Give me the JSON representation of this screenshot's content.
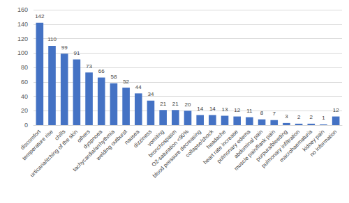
{
  "chart_data": {
    "type": "bar",
    "categories": [
      "discomfort",
      "temperature rise",
      "chills",
      "urticaria/itching of the skin",
      "others",
      "dyspnoea",
      "tachycardia/arrhythmia",
      "welding outburst",
      "nausea",
      "dizziness",
      "vomiting",
      "bronchospasm",
      "O2-saturation <90%",
      "blood pressure decreasing",
      "collapse/shock",
      "headache",
      "heart rate increase",
      "pulmonary edema",
      "abdominal pain",
      "muscle pain/flank pain",
      "purpura/bleeding",
      "pulmonary infiltration",
      "macrohaematuria",
      "kidney pain",
      "no information"
    ],
    "values": [
      142,
      110,
      99,
      91,
      73,
      66,
      58,
      52,
      44,
      34,
      21,
      21,
      20,
      14,
      14,
      13,
      12,
      11,
      8,
      7,
      3,
      2,
      2,
      1,
      12
    ],
    "color": "#4472c4",
    "ylim": [
      0,
      160
    ],
    "yticks": [
      0,
      20,
      40,
      60,
      80,
      100,
      120,
      140,
      160
    ],
    "grid": true,
    "data_labels": true
  }
}
